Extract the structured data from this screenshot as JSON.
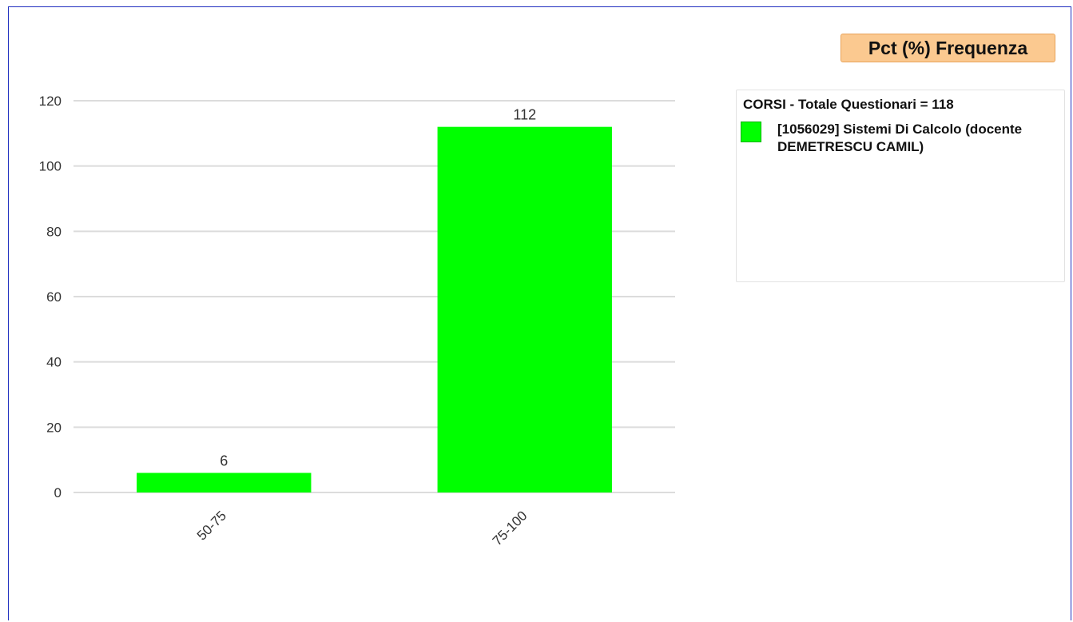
{
  "toggle": {
    "label": "Pct (%) Frequenza",
    "bg_color": "#fbc990"
  },
  "legend": {
    "title": "CORSI - Totale Questionari = 118",
    "items": [
      {
        "label": "[1056029] Sistemi Di Calcolo (docente DEMETRESCU CAMIL)",
        "color": "#00ff00"
      }
    ]
  },
  "chart_data": {
    "type": "bar",
    "categories": [
      "50-75",
      "75-100"
    ],
    "series": [
      {
        "name": "[1056029] Sistemi Di Calcolo (docente DEMETRESCU CAMIL)",
        "values": [
          6,
          112
        ],
        "color": "#00ff00"
      }
    ],
    "yticks": [
      0,
      20,
      40,
      60,
      80,
      100,
      120
    ],
    "ylim": [
      0,
      120
    ],
    "grid": true,
    "xlabel": "",
    "ylabel": "",
    "data_labels": true,
    "legend_position": "right"
  }
}
